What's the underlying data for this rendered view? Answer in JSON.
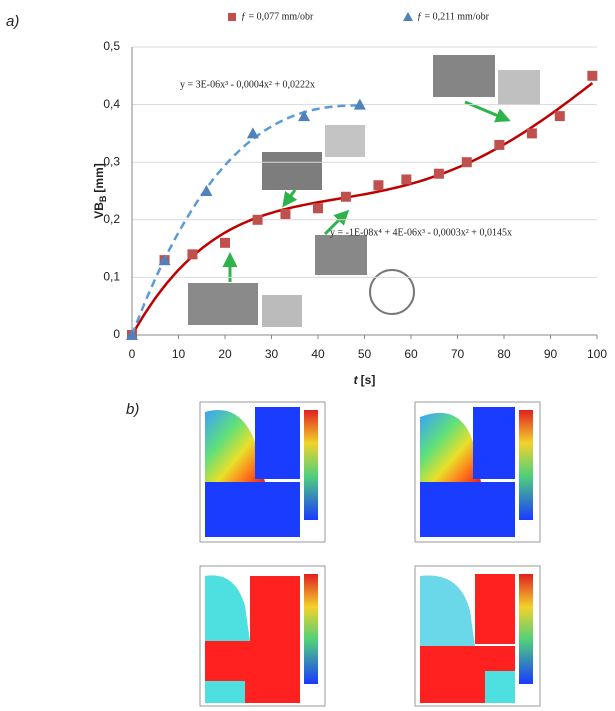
{
  "panel_a_label": "a)",
  "panel_b_label": "b)",
  "chart_data": {
    "type": "scatter",
    "x_label": {
      "main": "t",
      "unit": "[s]"
    },
    "y_label": {
      "main": "VB",
      "sub": "B",
      "unit": "[mm]"
    },
    "xlim": [
      0,
      100
    ],
    "xticks": [
      0,
      10,
      20,
      30,
      40,
      50,
      60,
      70,
      80,
      90,
      100
    ],
    "ylim": [
      0,
      0.5
    ],
    "yticks": [
      0,
      {
        "value": 0.1,
        "label": "0,1"
      },
      {
        "value": 0.2,
        "label": "0,2"
      },
      {
        "value": 0.3,
        "label": "0,3"
      },
      {
        "value": 0.4,
        "label": "0,4"
      },
      {
        "value": 0.5,
        "label": "0,5"
      }
    ],
    "grid": true,
    "legend": "top",
    "series": [
      {
        "name": "ƒ = 0,077 mm/obr",
        "color": "#c0504d",
        "marker": "square",
        "trend_color": "#c00000",
        "trend_degree": 4,
        "trend_label": "y = -1E-08x⁴ + 4E-06x³ - 0,0003x² + 0,0145x",
        "x": [
          0,
          7,
          13,
          20,
          27,
          33,
          40,
          46,
          53,
          59,
          66,
          72,
          79,
          86,
          92,
          99
        ],
        "values": [
          0,
          0.13,
          0.14,
          0.16,
          0.2,
          0.21,
          0.22,
          0.24,
          0.26,
          0.27,
          0.28,
          0.3,
          0.33,
          0.35,
          0.38,
          0.45
        ]
      },
      {
        "name": "ƒ = 0,211 mm/obr",
        "color": "#4f81bd",
        "marker": "triangle",
        "trend_color": "#5b9bd5",
        "trend_degree": 3,
        "trend_label": "y = 3E-06x³ - 0,0004x² + 0,0222x",
        "x": [
          0,
          7,
          16,
          26,
          37,
          49
        ],
        "values": [
          0,
          0.13,
          0.25,
          0.35,
          0.38,
          0.4
        ]
      }
    ]
  }
}
